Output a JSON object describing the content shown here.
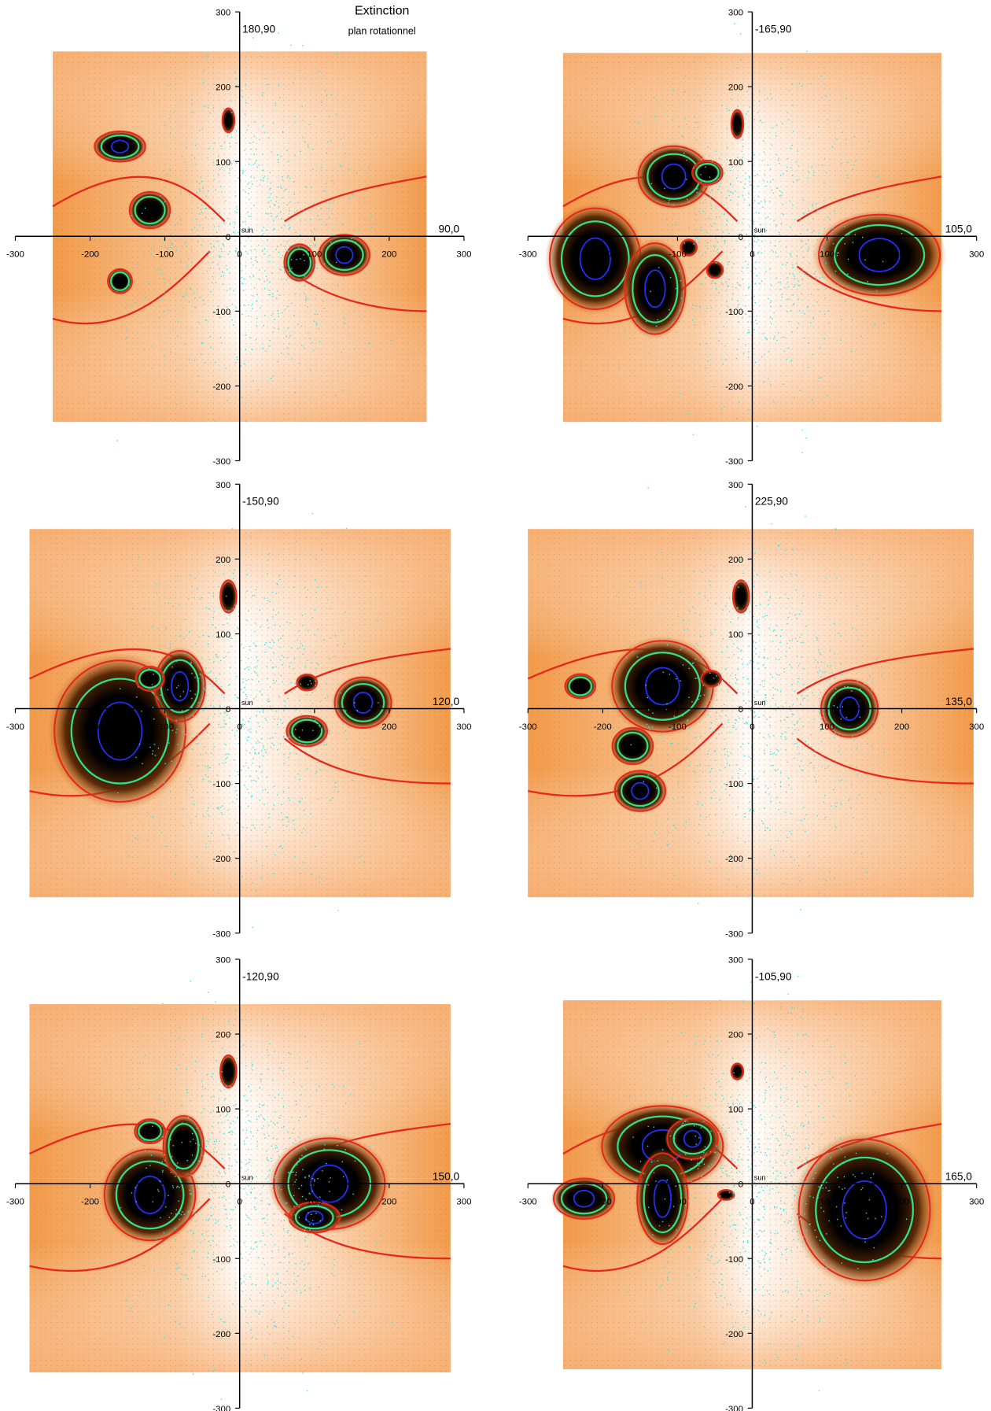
{
  "title": "Extinction",
  "subtitle": "plan rotationnel",
  "chart_data": [
    {
      "type": "map",
      "top_label": "180,90",
      "right_label": "90,0",
      "center_label": "sun",
      "xlim": [
        -300,
        300
      ],
      "ylim": [
        -300,
        300
      ],
      "xticks": [
        -300,
        -200,
        -100,
        0,
        100,
        200,
        300
      ],
      "yticks": [
        300,
        200,
        100,
        0,
        -100,
        -200,
        -300
      ]
    },
    {
      "type": "map",
      "top_label": "-165,90",
      "right_label": "105,0",
      "center_label": "sun",
      "xlim": [
        -300,
        300
      ],
      "ylim": [
        -300,
        300
      ],
      "xticks": [
        -300,
        -200,
        -100,
        0,
        100,
        200,
        300
      ],
      "yticks": [
        300,
        200,
        100,
        0,
        -100,
        -200,
        -300
      ]
    },
    {
      "type": "map",
      "top_label": "-150,90",
      "right_label": "120,0",
      "center_label": "sun",
      "xlim": [
        -300,
        300
      ],
      "ylim": [
        -300,
        300
      ],
      "xticks": [
        -300,
        -200,
        -100,
        0,
        100,
        200,
        300
      ],
      "yticks": [
        300,
        200,
        100,
        0,
        -100,
        -200,
        -300
      ]
    },
    {
      "type": "map",
      "top_label": "225,90",
      "right_label": "135,0",
      "center_label": "sun",
      "xlim": [
        -300,
        300
      ],
      "ylim": [
        -300,
        300
      ],
      "xticks": [
        -300,
        -200,
        -100,
        0,
        100,
        200,
        300
      ],
      "yticks": [
        300,
        200,
        100,
        0,
        -100,
        -200,
        -300
      ]
    },
    {
      "type": "map",
      "top_label": "-120,90",
      "right_label": "150,0",
      "center_label": "sun",
      "xlim": [
        -300,
        300
      ],
      "ylim": [
        -300,
        300
      ],
      "xticks": [
        -300,
        -200,
        -100,
        0,
        100,
        200,
        300
      ],
      "yticks": [
        300,
        200,
        100,
        0,
        -100,
        -200,
        -300
      ]
    },
    {
      "type": "map",
      "top_label": "-105,90",
      "right_label": "165,0",
      "center_label": "sun",
      "xlim": [
        -300,
        300
      ],
      "ylim": [
        -300,
        300
      ],
      "xticks": [
        -300,
        -200,
        -100,
        0,
        100,
        200,
        300
      ],
      "yticks": [
        300,
        200,
        100,
        0,
        -100,
        -200,
        -300
      ]
    }
  ]
}
